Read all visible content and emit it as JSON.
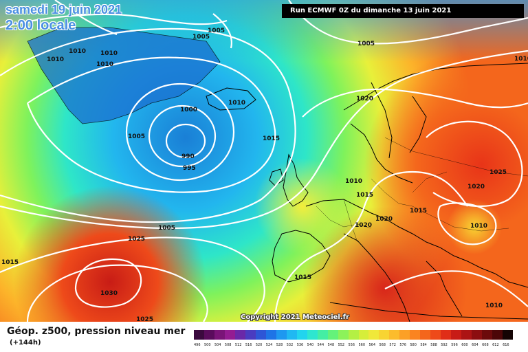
{
  "header": {
    "date": "samedi 19 juin 2021",
    "time": "2:00 locale",
    "run": "Run ECMWF 0Z du dimanche 13 juin 2021"
  },
  "footer": {
    "caption": "Géop. z500, pression niveau mer",
    "subcaption": "(+144h)",
    "copyright": "Copyright 2021 Meteociel.fr"
  },
  "scale": {
    "values": [
      "496",
      "500",
      "504",
      "508",
      "512",
      "516",
      "520",
      "524",
      "528",
      "532",
      "536",
      "540",
      "544",
      "548",
      "552",
      "556",
      "560",
      "564",
      "568",
      "572",
      "576",
      "580",
      "584",
      "588",
      "592",
      "596",
      "600",
      "604",
      "608",
      "612",
      "616"
    ],
    "colors": [
      "#3b0a3e",
      "#5a0c5c",
      "#7a1478",
      "#941c92",
      "#6a28a8",
      "#4a3cc0",
      "#2e56d6",
      "#1e74e6",
      "#1e98f0",
      "#20b8f2",
      "#22d4ee",
      "#2ee6d0",
      "#44eea4",
      "#64f27a",
      "#8cf25a",
      "#b4f044",
      "#d6ee3a",
      "#f0e83a",
      "#f8d432",
      "#fcbc2c",
      "#fca026",
      "#fa8420",
      "#f4661c",
      "#ee4a1a",
      "#e02e18",
      "#c81c16",
      "#ac1414",
      "#8c0e10",
      "#6c0a0c",
      "#4c0608",
      "#140404"
    ]
  },
  "isobars": [
    {
      "label": "1005"
    },
    {
      "label": "1005"
    },
    {
      "label": "1010"
    },
    {
      "label": "1010"
    },
    {
      "label": "1010"
    },
    {
      "label": "1010"
    },
    {
      "label": "1005"
    },
    {
      "label": "1010"
    },
    {
      "label": "1000"
    },
    {
      "label": "990"
    },
    {
      "label": "995"
    },
    {
      "label": "1005"
    },
    {
      "label": "1015"
    },
    {
      "label": "1020"
    },
    {
      "label": "1010"
    },
    {
      "label": "1015"
    },
    {
      "label": "1020"
    },
    {
      "label": "1020"
    },
    {
      "label": "1015"
    },
    {
      "label": "1010"
    },
    {
      "label": "1025"
    },
    {
      "label": "1020"
    },
    {
      "label": "1025"
    },
    {
      "label": "1015"
    },
    {
      "label": "1030"
    },
    {
      "label": "1025"
    },
    {
      "label": "1015"
    },
    {
      "label": "1010"
    },
    {
      "label": "1010"
    },
    {
      "label": "1015"
    }
  ]
}
